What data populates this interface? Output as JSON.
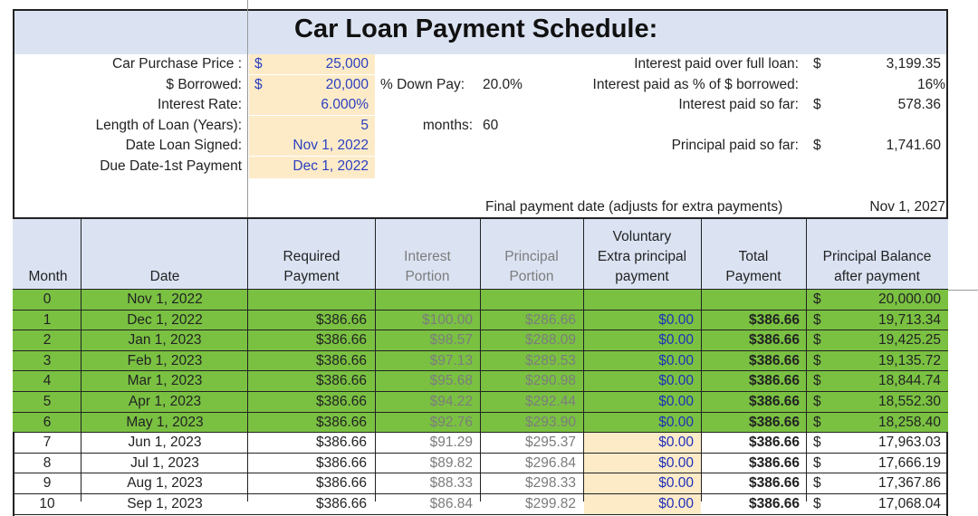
{
  "title": "Car Loan Payment Schedule:",
  "inputs": {
    "purchase_price": {
      "label": "Car Purchase Price :",
      "currency": "$",
      "value": "25,000"
    },
    "borrowed": {
      "label": "$ Borrowed:",
      "currency": "$",
      "value": "20,000"
    },
    "interest_rate": {
      "label": "Interest Rate:",
      "value": "6.000%"
    },
    "loan_length": {
      "label": "Length of Loan (Years):",
      "value": "5"
    },
    "date_signed": {
      "label": "Date Loan Signed:",
      "value": "Nov 1, 2022"
    },
    "due_date": {
      "label": "Due Date-1st Payment",
      "value": "Dec 1, 2022"
    }
  },
  "down_pay": {
    "label": "% Down Pay:",
    "value": "20.0%"
  },
  "months": {
    "label": "months:",
    "value": "60"
  },
  "summary": {
    "interest_full": {
      "label": "Interest paid over full loan:",
      "currency": "$",
      "value": "3,199.35"
    },
    "interest_pct": {
      "label": "Interest paid as % of $ borrowed:",
      "value": "16%"
    },
    "interest_so_far": {
      "label": "Interest paid so far:",
      "currency": "$",
      "value": "578.36"
    },
    "principal_so_far": {
      "label": "Principal paid so far:",
      "currency": "$",
      "value": "1,741.60"
    }
  },
  "final_payment": {
    "label": "Final payment date (adjusts for extra payments)",
    "value": "Nov 1, 2027"
  },
  "columns": {
    "month": "Month",
    "date": "Date",
    "required_1": "Required",
    "required_2": "Payment",
    "interest_1": "Interest",
    "interest_2": "Portion",
    "principal_1": "Principal",
    "principal_2": "Portion",
    "voluntary_1": "Voluntary",
    "voluntary_2": "Extra principal",
    "voluntary_3": "payment",
    "total_1": "Total",
    "total_2": "Payment",
    "balance_1": "Principal Balance",
    "balance_2": "after payment"
  },
  "rows": [
    {
      "month": "0",
      "date": "Nov 1, 2022",
      "required": "",
      "interest": "",
      "principal": "",
      "extra": "",
      "total": "",
      "cur": "$",
      "balance": "20,000.00",
      "paid": true
    },
    {
      "month": "1",
      "date": "Dec 1, 2022",
      "required": "$386.66",
      "interest": "$100.00",
      "principal": "$286.66",
      "extra": "$0.00",
      "total": "$386.66",
      "cur": "$",
      "balance": "19,713.34",
      "paid": true
    },
    {
      "month": "2",
      "date": "Jan 1, 2023",
      "required": "$386.66",
      "interest": "$98.57",
      "principal": "$288.09",
      "extra": "$0.00",
      "total": "$386.66",
      "cur": "$",
      "balance": "19,425.25",
      "paid": true
    },
    {
      "month": "3",
      "date": "Feb 1, 2023",
      "required": "$386.66",
      "interest": "$97.13",
      "principal": "$289.53",
      "extra": "$0.00",
      "total": "$386.66",
      "cur": "$",
      "balance": "19,135.72",
      "paid": true
    },
    {
      "month": "4",
      "date": "Mar 1, 2023",
      "required": "$386.66",
      "interest": "$95.68",
      "principal": "$290.98",
      "extra": "$0.00",
      "total": "$386.66",
      "cur": "$",
      "balance": "18,844.74",
      "paid": true
    },
    {
      "month": "5",
      "date": "Apr 1, 2023",
      "required": "$386.66",
      "interest": "$94.22",
      "principal": "$292.44",
      "extra": "$0.00",
      "total": "$386.66",
      "cur": "$",
      "balance": "18,552.30",
      "paid": true
    },
    {
      "month": "6",
      "date": "May 1, 2023",
      "required": "$386.66",
      "interest": "$92.76",
      "principal": "$293.90",
      "extra": "$0.00",
      "total": "$386.66",
      "cur": "$",
      "balance": "18,258.40",
      "paid": true
    },
    {
      "month": "7",
      "date": "Jun 1, 2023",
      "required": "$386.66",
      "interest": "$91.29",
      "principal": "$295.37",
      "extra": "$0.00",
      "total": "$386.66",
      "cur": "$",
      "balance": "17,963.03",
      "paid": false
    },
    {
      "month": "8",
      "date": "Jul 1, 2023",
      "required": "$386.66",
      "interest": "$89.82",
      "principal": "$296.84",
      "extra": "$0.00",
      "total": "$386.66",
      "cur": "$",
      "balance": "17,666.19",
      "paid": false
    },
    {
      "month": "9",
      "date": "Aug 1, 2023",
      "required": "$386.66",
      "interest": "$88.33",
      "principal": "$298.33",
      "extra": "$0.00",
      "total": "$386.66",
      "cur": "$",
      "balance": "17,367.86",
      "paid": false
    },
    {
      "month": "10",
      "date": "Sep 1, 2023",
      "required": "$386.66",
      "interest": "$86.84",
      "principal": "$299.82",
      "extra": "$0.00",
      "total": "$386.66",
      "cur": "$",
      "balance": "17,068.04",
      "paid": false
    }
  ]
}
